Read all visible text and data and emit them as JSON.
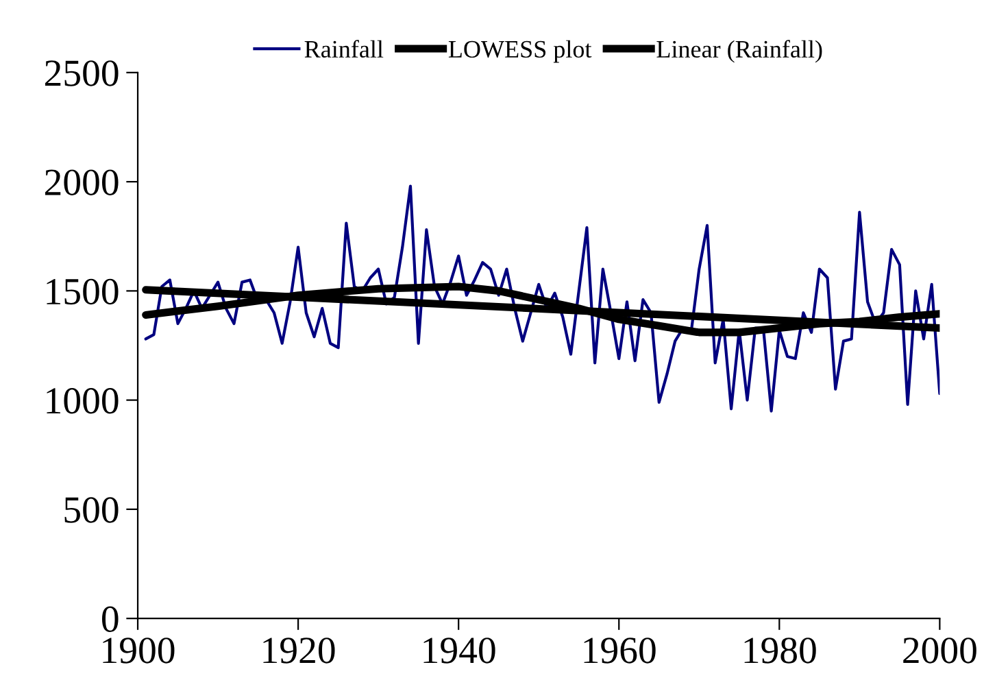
{
  "chart_data": {
    "type": "line",
    "legend": "top",
    "line_style": "solid",
    "marker": "none",
    "grid": false,
    "xlim": [
      1900,
      2000
    ],
    "xticks": [
      1900,
      1920,
      1940,
      1960,
      1980,
      2000
    ],
    "ylim": [
      0,
      2500
    ],
    "yticks": [
      0,
      500,
      1000,
      1500,
      2000,
      2500
    ],
    "series": [
      {
        "name": "Rainfall",
        "color": "#000080",
        "x": [
          1901,
          1902,
          1903,
          1904,
          1905,
          1906,
          1907,
          1908,
          1909,
          1910,
          1911,
          1912,
          1913,
          1914,
          1915,
          1916,
          1917,
          1918,
          1919,
          1920,
          1921,
          1922,
          1923,
          1924,
          1925,
          1926,
          1927,
          1928,
          1929,
          1930,
          1931,
          1932,
          1933,
          1934,
          1935,
          1936,
          1937,
          1938,
          1939,
          1940,
          1941,
          1942,
          1943,
          1944,
          1945,
          1946,
          1947,
          1948,
          1949,
          1950,
          1951,
          1952,
          1953,
          1954,
          1955,
          1956,
          1957,
          1958,
          1959,
          1960,
          1961,
          1962,
          1963,
          1964,
          1965,
          1966,
          1967,
          1968,
          1969,
          1970,
          1971,
          1972,
          1973,
          1974,
          1975,
          1976,
          1977,
          1978,
          1979,
          1980,
          1981,
          1982,
          1983,
          1984,
          1985,
          1986,
          1987,
          1988,
          1989,
          1990,
          1991,
          1992,
          1993,
          1994,
          1995,
          1996,
          1997,
          1998,
          1999,
          2000
        ],
        "values": [
          1280,
          1300,
          1520,
          1550,
          1350,
          1420,
          1500,
          1420,
          1480,
          1540,
          1420,
          1350,
          1540,
          1550,
          1450,
          1460,
          1400,
          1260,
          1450,
          1700,
          1400,
          1290,
          1420,
          1260,
          1240,
          1810,
          1520,
          1500,
          1560,
          1600,
          1440,
          1470,
          1700,
          1980,
          1260,
          1780,
          1520,
          1440,
          1540,
          1660,
          1480,
          1550,
          1630,
          1600,
          1480,
          1600,
          1420,
          1270,
          1400,
          1530,
          1420,
          1490,
          1380,
          1210,
          1500,
          1790,
          1170,
          1600,
          1400,
          1190,
          1450,
          1180,
          1460,
          1400,
          990,
          1120,
          1270,
          1330,
          1310,
          1600,
          1800,
          1170,
          1370,
          960,
          1320,
          1000,
          1330,
          1330,
          950,
          1320,
          1200,
          1190,
          1400,
          1310,
          1600,
          1560,
          1050,
          1270,
          1280,
          1860,
          1450,
          1350,
          1400,
          1690,
          1620,
          980,
          1500,
          1280,
          1530,
          1030
        ]
      },
      {
        "name": "LOWESS plot",
        "color": "#000000",
        "x": [
          1901,
          1910,
          1920,
          1930,
          1940,
          1945,
          1950,
          1955,
          1960,
          1965,
          1970,
          1975,
          1980,
          1985,
          1990,
          1995,
          2000
        ],
        "values": [
          1390,
          1430,
          1480,
          1510,
          1520,
          1500,
          1460,
          1420,
          1370,
          1340,
          1310,
          1310,
          1330,
          1350,
          1360,
          1380,
          1395
        ]
      },
      {
        "name": "Linear (Rainfall)",
        "color": "#000000",
        "x": [
          1901,
          2000
        ],
        "values": [
          1505,
          1330
        ]
      }
    ]
  }
}
